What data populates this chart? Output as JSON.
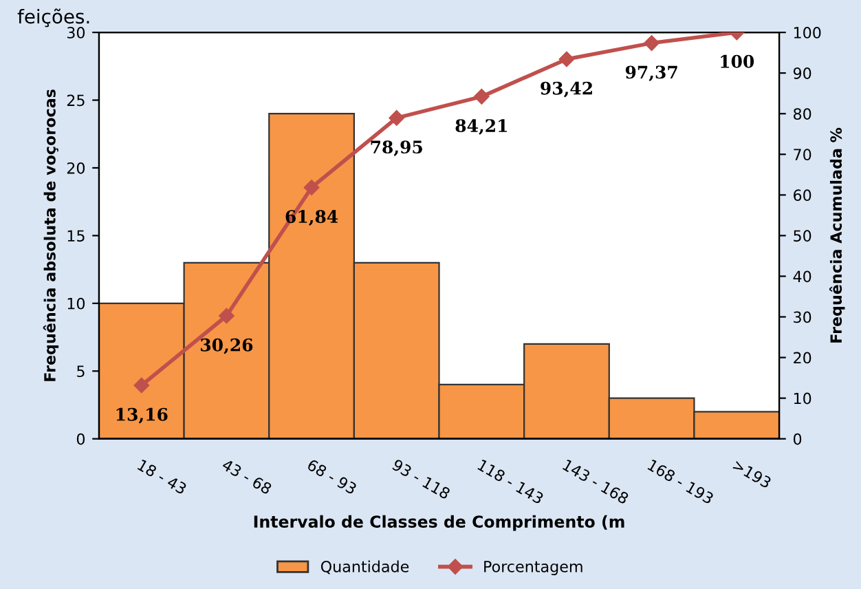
{
  "chart_data": {
    "type": "bar",
    "xlabel": "Intervalo de Classes de Comprimento (m",
    "ylabel": "Frequência absoluta de voçorocas",
    "y2label": "Frequência Acumulada %",
    "categories": [
      "18 - 43",
      "43 - 68",
      "68 - 93",
      "93 - 118",
      "118 - 143",
      "143 - 168",
      "168 - 193",
      ">193"
    ],
    "series": [
      {
        "name": "Quantidade",
        "color": "#f79646",
        "values": [
          10,
          13,
          24,
          13,
          4,
          7,
          3,
          2
        ]
      },
      {
        "name": "Porcentagem",
        "type": "line",
        "axis": "y2",
        "color": "#c0504d",
        "values": [
          13.16,
          30.26,
          61.84,
          78.95,
          84.21,
          93.42,
          97.37,
          100
        ],
        "value_labels": [
          "13,16",
          "30,26",
          "61,84",
          "78,95",
          "84,21",
          "93,42",
          "97,37",
          "100"
        ]
      }
    ],
    "ylim": [
      0,
      30
    ],
    "yticks": [
      0,
      5,
      10,
      15,
      20,
      25,
      30
    ],
    "y2lim": [
      0,
      100
    ],
    "y2ticks": [
      0,
      10,
      20,
      30,
      40,
      50,
      60,
      70,
      80,
      90,
      100
    ],
    "marker": "diamond",
    "grid": false,
    "legend": "bottom",
    "annotations": [
      "feições."
    ]
  }
}
